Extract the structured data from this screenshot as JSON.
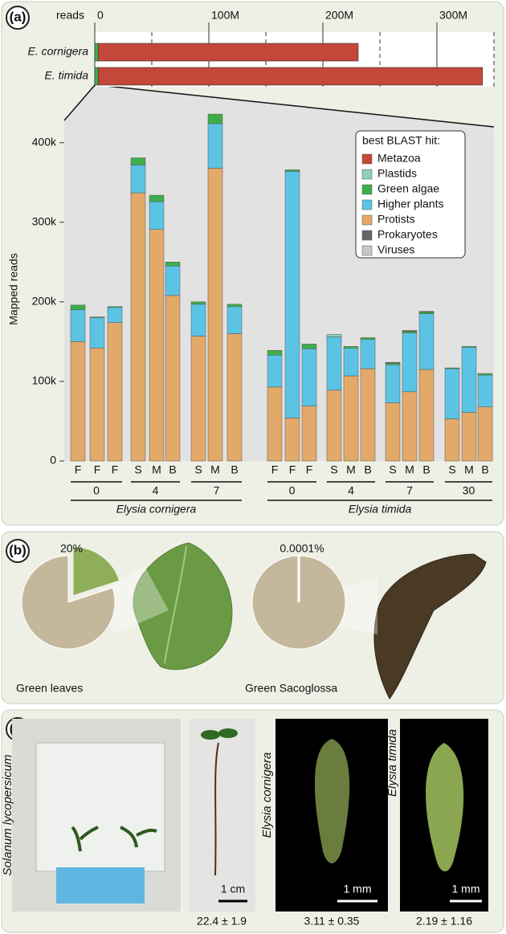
{
  "chart_data": [
    {
      "type": "hbar",
      "x_label": "reads",
      "categories": [
        "E. cornigera",
        "E. timida"
      ],
      "series": [
        {
          "color": "#3fae49",
          "values": [
            3000000,
            3000000
          ]
        },
        {
          "color": "#c4473a",
          "values": [
            228000000,
            337000000
          ]
        }
      ],
      "xlim": [
        0,
        350000000
      ],
      "xticks": [
        0,
        {
          "value": 100000000,
          "label": "100M"
        },
        {
          "value": 200000000,
          "label": "200M"
        },
        {
          "value": 300000000,
          "label": "300M"
        }
      ],
      "minor_xticks": [
        50000000,
        150000000,
        250000000,
        350000000
      ]
    },
    {
      "type": "stacked-bar",
      "y_label": "Mapped reads",
      "legend_title": "best BLAST hit:",
      "species": [
        {
          "name": "Elysia cornigera",
          "groups": [
            {
              "label": "0",
              "categories": [
                "F",
                "F",
                "F"
              ]
            },
            {
              "label": "4",
              "categories": [
                "S",
                "M",
                "B"
              ]
            },
            {
              "label": "7",
              "categories": [
                "S",
                "M",
                "B"
              ]
            }
          ]
        },
        {
          "name": "Elysia timida",
          "groups": [
            {
              "label": "0",
              "categories": [
                "F",
                "F",
                "F"
              ]
            },
            {
              "label": "4",
              "categories": [
                "S",
                "M",
                "B"
              ]
            },
            {
              "label": "7",
              "categories": [
                "S",
                "M",
                "B"
              ]
            },
            {
              "label": "30",
              "categories": [
                "S",
                "M",
                "B"
              ]
            }
          ]
        }
      ],
      "series": [
        {
          "name": "Metazoa",
          "color": "#c4473a",
          "values": [
            0,
            0,
            0,
            0,
            0,
            0,
            0,
            0,
            0,
            0,
            0,
            0,
            0,
            0,
            0,
            0,
            0,
            0,
            0,
            0,
            0
          ]
        },
        {
          "name": "Plastids",
          "color": "#8fd1b3",
          "values": [
            0,
            0,
            0,
            0,
            0,
            0,
            0,
            0,
            0,
            0,
            0,
            0,
            3000,
            0,
            0,
            0,
            0,
            0,
            0,
            0,
            0
          ]
        },
        {
          "name": "Green algae",
          "color": "#3fae49",
          "values": [
            6000,
            1000,
            1000,
            9000,
            8000,
            5000,
            3000,
            12000,
            3000,
            6000,
            2000,
            6000,
            0,
            2000,
            2000,
            2000,
            2000,
            2000,
            1000,
            1000,
            2000
          ]
        },
        {
          "name": "Higher plants",
          "color": "#5bc4e4",
          "values": [
            40000,
            38000,
            19000,
            35000,
            35000,
            37000,
            40000,
            56000,
            34000,
            40000,
            310000,
            72000,
            67000,
            35000,
            37000,
            48000,
            74000,
            70000,
            63000,
            82000,
            40000
          ]
        },
        {
          "name": "Protists",
          "color": "#e3a968",
          "values": [
            150000,
            142000,
            174000,
            337000,
            291000,
            208000,
            157000,
            368000,
            160000,
            93000,
            54000,
            69000,
            89000,
            107000,
            116000,
            73000,
            87000,
            115000,
            53000,
            61000,
            68000
          ]
        },
        {
          "name": "Prokaryotes",
          "color": "#666666",
          "values": [
            0,
            0,
            0,
            0,
            0,
            0,
            0,
            0,
            0,
            0,
            0,
            0,
            0,
            0,
            0,
            1000,
            1000,
            1000,
            0,
            0,
            0
          ]
        },
        {
          "name": "Viruses",
          "color": "#c8c8c8",
          "values": [
            0,
            0,
            0,
            0,
            0,
            0,
            0,
            0,
            0,
            0,
            0,
            0,
            0,
            0,
            0,
            0,
            0,
            0,
            0,
            0,
            0
          ]
        }
      ],
      "ylim": [
        0,
        430000
      ],
      "yticks": [
        0,
        {
          "value": 100000,
          "label": "100k"
        },
        {
          "value": 200000,
          "label": "200k"
        },
        {
          "value": 300000,
          "label": "300k"
        },
        {
          "value": 400000,
          "label": "400k"
        }
      ]
    },
    {
      "type": "pie",
      "title": "Green leaves",
      "values": [
        20
      ],
      "value_labels": [
        "20%"
      ],
      "color": "#8fae5a"
    },
    {
      "type": "pie",
      "title": "Green Sacoglossa",
      "values": [
        0.0001
      ],
      "value_labels": [
        "0.0001%"
      ],
      "color": "#ffffff"
    }
  ],
  "panel_labels": [
    "(a)",
    "(b)",
    "(c)"
  ],
  "panel_c": {
    "plant": "Solanum lycopersicum",
    "items": [
      {
        "scale": "1 cm",
        "measure": "22.4 ± 1.9"
      },
      {
        "name": "Elysia cornigera",
        "scale": "1 mm",
        "measure": "3.11 ± 0.35"
      },
      {
        "name": "Elysia timida",
        "scale": "1 mm",
        "measure": "2.19 ± 1.16"
      }
    ]
  }
}
